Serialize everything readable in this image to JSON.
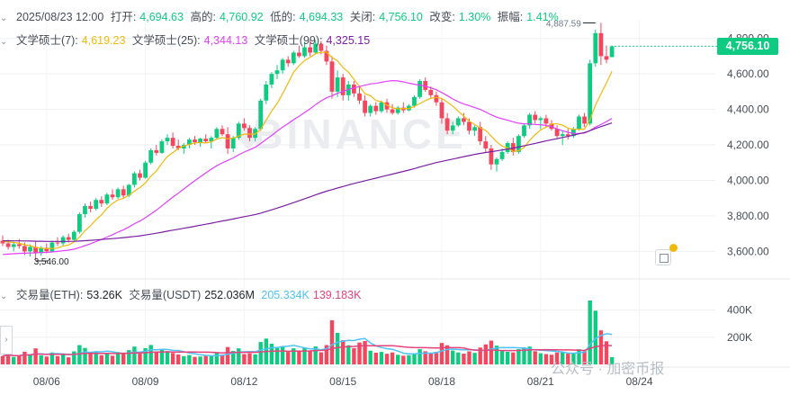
{
  "header": {
    "datetime": "2025/08/23 12:00",
    "open_label": "打开:",
    "open": "4,694.63",
    "high_label": "高的:",
    "high": "4,760.92",
    "low_label": "低的:",
    "low": "4,694.33",
    "close_label": "关闭:",
    "close": "4,756.10",
    "change_label": "改变:",
    "change": "1.30%",
    "amp_label": "振幅:",
    "amp": "1.41%"
  },
  "ma": {
    "ma7_label": "文学硕士(7):",
    "ma7": "4,619.23",
    "ma25_label": "文学硕士(25):",
    "ma25": "4,344.13",
    "ma99_label": "文学硕士(99):",
    "ma99": "4,325.15"
  },
  "volume_header": {
    "label": "交易量(ETH):",
    "eth": "53.26K",
    "usdt_label": "交易量(USDT)",
    "usdt": "252.036M",
    "ma1": "205.334K",
    "ma2": "139.183K"
  },
  "current_price": "4,756.10",
  "watermark": "BINANCE",
  "footer_watermark": "公众号 · 加密币报",
  "colors": {
    "up": "#0ecb81",
    "down": "#f6465d",
    "ma7": "#f0b90b",
    "ma25": "#e040fb",
    "ma99": "#7b1fa2",
    "vol_ma1": "#4fc3f7",
    "vol_ma2": "#e6427a"
  },
  "chart_data": {
    "type": "candlestick",
    "interval_hours": 4,
    "y_ticks": [
      3600,
      3800,
      4000,
      4200,
      4400,
      4600,
      4800
    ],
    "y_tick_labels": [
      "3,600.00",
      "3,800.00",
      "4,000.00",
      "4,200.00",
      "4,400.00",
      "4,600.00",
      "4,800.00"
    ],
    "ylim": [
      3470,
      4905
    ],
    "x_labels": [
      {
        "label": "08/06",
        "candle": 8
      },
      {
        "label": "08/09",
        "candle": 26
      },
      {
        "label": "08/12",
        "candle": 44
      },
      {
        "label": "08/15",
        "candle": 62
      },
      {
        "label": "08/18",
        "candle": 80
      },
      {
        "label": "08/21",
        "candle": 98
      },
      {
        "label": "08/24",
        "candle": 116
      }
    ],
    "annotations": [
      {
        "text": "3,546.00",
        "candle": 6,
        "value": 3546
      },
      {
        "text": "4,887.59",
        "candle": 108,
        "value": 4887.59
      }
    ],
    "volume_ticks": [
      200000,
      400000
    ],
    "volume_tick_labels": [
      "200K",
      "400K"
    ],
    "volume_max": 470000,
    "candles": [
      [
        3660,
        3690,
        3630,
        3645,
        62000
      ],
      [
        3645,
        3665,
        3610,
        3625,
        78000
      ],
      [
        3625,
        3655,
        3600,
        3640,
        55000
      ],
      [
        3640,
        3670,
        3615,
        3630,
        61000
      ],
      [
        3630,
        3650,
        3580,
        3600,
        93000
      ],
      [
        3600,
        3640,
        3570,
        3625,
        72000
      ],
      [
        3625,
        3655,
        3546,
        3590,
        118000
      ],
      [
        3590,
        3630,
        3575,
        3620,
        66000
      ],
      [
        3620,
        3645,
        3590,
        3600,
        58000
      ],
      [
        3600,
        3660,
        3595,
        3650,
        88000
      ],
      [
        3650,
        3680,
        3630,
        3645,
        61000
      ],
      [
        3645,
        3690,
        3630,
        3680,
        74000
      ],
      [
        3680,
        3700,
        3650,
        3665,
        52000
      ],
      [
        3665,
        3720,
        3660,
        3710,
        96000
      ],
      [
        3710,
        3820,
        3700,
        3810,
        142000
      ],
      [
        3810,
        3870,
        3790,
        3855,
        121000
      ],
      [
        3855,
        3880,
        3820,
        3840,
        77000
      ],
      [
        3840,
        3900,
        3830,
        3890,
        93000
      ],
      [
        3890,
        3910,
        3850,
        3870,
        68000
      ],
      [
        3870,
        3930,
        3860,
        3920,
        82000
      ],
      [
        3920,
        3950,
        3890,
        3905,
        64000
      ],
      [
        3905,
        3960,
        3895,
        3950,
        91000
      ],
      [
        3950,
        3970,
        3900,
        3915,
        87000
      ],
      [
        3915,
        3980,
        3905,
        3975,
        105000
      ],
      [
        3975,
        4050,
        3960,
        4040,
        131000
      ],
      [
        4040,
        4060,
        4000,
        4015,
        79000
      ],
      [
        4015,
        4110,
        4010,
        4100,
        120000
      ],
      [
        4100,
        4180,
        4090,
        4170,
        143000
      ],
      [
        4170,
        4200,
        4140,
        4155,
        88000
      ],
      [
        4155,
        4230,
        4150,
        4220,
        110000
      ],
      [
        4220,
        4260,
        4200,
        4240,
        98000
      ],
      [
        4240,
        4270,
        4180,
        4195,
        84000
      ],
      [
        4195,
        4230,
        4170,
        4180,
        73000
      ],
      [
        4180,
        4210,
        4150,
        4200,
        61000
      ],
      [
        4200,
        4240,
        4180,
        4230,
        69000
      ],
      [
        4230,
        4250,
        4200,
        4215,
        55000
      ],
      [
        4215,
        4240,
        4190,
        4235,
        58000
      ],
      [
        4235,
        4260,
        4210,
        4220,
        62000
      ],
      [
        4220,
        4250,
        4180,
        4240,
        66000
      ],
      [
        4240,
        4300,
        4230,
        4290,
        88000
      ],
      [
        4290,
        4310,
        4250,
        4260,
        72000
      ],
      [
        4260,
        4300,
        4150,
        4180,
        128000
      ],
      [
        4180,
        4250,
        4160,
        4240,
        99000
      ],
      [
        4240,
        4330,
        4230,
        4320,
        118000
      ],
      [
        4320,
        4350,
        4280,
        4295,
        76000
      ],
      [
        4295,
        4310,
        4220,
        4240,
        81000
      ],
      [
        4240,
        4300,
        4220,
        4290,
        74000
      ],
      [
        4290,
        4460,
        4280,
        4450,
        165000
      ],
      [
        4450,
        4560,
        4430,
        4540,
        190000
      ],
      [
        4540,
        4610,
        4520,
        4600,
        152000
      ],
      [
        4600,
        4650,
        4570,
        4620,
        128000
      ],
      [
        4620,
        4690,
        4600,
        4680,
        134000
      ],
      [
        4680,
        4700,
        4640,
        4660,
        92000
      ],
      [
        4660,
        4730,
        4650,
        4720,
        118000
      ],
      [
        4720,
        4760,
        4690,
        4700,
        103000
      ],
      [
        4700,
        4780,
        4690,
        4750,
        125000
      ],
      [
        4750,
        4790,
        4700,
        4720,
        98000
      ],
      [
        4720,
        4790,
        4710,
        4770,
        132000
      ],
      [
        4770,
        4785,
        4710,
        4730,
        89000
      ],
      [
        4730,
        4760,
        4650,
        4670,
        142000
      ],
      [
        4670,
        4700,
        4460,
        4500,
        325000
      ],
      [
        4500,
        4620,
        4470,
        4580,
        232000
      ],
      [
        4580,
        4600,
        4450,
        4480,
        178000
      ],
      [
        4480,
        4560,
        4450,
        4540,
        141000
      ],
      [
        4540,
        4560,
        4470,
        4490,
        120000
      ],
      [
        4490,
        4530,
        4430,
        4450,
        161000
      ],
      [
        4450,
        4480,
        4360,
        4380,
        172000
      ],
      [
        4380,
        4430,
        4360,
        4420,
        101000
      ],
      [
        4420,
        4440,
        4370,
        4390,
        86000
      ],
      [
        4390,
        4450,
        4380,
        4440,
        92000
      ],
      [
        4440,
        4460,
        4380,
        4400,
        78000
      ],
      [
        4400,
        4430,
        4370,
        4380,
        88000
      ],
      [
        4380,
        4420,
        4370,
        4410,
        71000
      ],
      [
        4410,
        4440,
        4380,
        4395,
        64000
      ],
      [
        4395,
        4430,
        4390,
        4420,
        68000
      ],
      [
        4420,
        4480,
        4410,
        4470,
        83000
      ],
      [
        4470,
        4570,
        4460,
        4560,
        112000
      ],
      [
        4560,
        4580,
        4500,
        4510,
        97000
      ],
      [
        4510,
        4530,
        4460,
        4480,
        86000
      ],
      [
        4480,
        4500,
        4420,
        4440,
        92000
      ],
      [
        4440,
        4460,
        4320,
        4350,
        158000
      ],
      [
        4350,
        4380,
        4260,
        4280,
        141000
      ],
      [
        4280,
        4330,
        4260,
        4310,
        102000
      ],
      [
        4310,
        4360,
        4300,
        4350,
        88000
      ],
      [
        4350,
        4380,
        4310,
        4330,
        79000
      ],
      [
        4330,
        4350,
        4260,
        4280,
        96000
      ],
      [
        4280,
        4310,
        4250,
        4300,
        85000
      ],
      [
        4300,
        4330,
        4200,
        4220,
        124000
      ],
      [
        4220,
        4250,
        4160,
        4180,
        147000
      ],
      [
        4180,
        4200,
        4060,
        4090,
        175000
      ],
      [
        4090,
        4130,
        4050,
        4120,
        138000
      ],
      [
        4120,
        4180,
        4110,
        4160,
        101000
      ],
      [
        4160,
        4220,
        4150,
        4210,
        93000
      ],
      [
        4210,
        4240,
        4140,
        4160,
        88000
      ],
      [
        4160,
        4260,
        4150,
        4250,
        112000
      ],
      [
        4250,
        4320,
        4240,
        4310,
        126000
      ],
      [
        4310,
        4380,
        4290,
        4370,
        131000
      ],
      [
        4370,
        4390,
        4320,
        4340,
        97000
      ],
      [
        4340,
        4360,
        4290,
        4350,
        82000
      ],
      [
        4350,
        4370,
        4300,
        4320,
        76000
      ],
      [
        4320,
        4340,
        4280,
        4290,
        71000
      ],
      [
        4290,
        4310,
        4240,
        4250,
        88000
      ],
      [
        4250,
        4280,
        4200,
        4260,
        93000
      ],
      [
        4260,
        4290,
        4230,
        4250,
        79000
      ],
      [
        4250,
        4300,
        4240,
        4290,
        86000
      ],
      [
        4290,
        4370,
        4280,
        4360,
        112000
      ],
      [
        4360,
        4380,
        4300,
        4320,
        97000
      ],
      [
        4320,
        4680,
        4310,
        4660,
        470000
      ],
      [
        4660,
        4850,
        4640,
        4830,
        395000
      ],
      [
        4830,
        4887.59,
        4650,
        4700,
        250000
      ],
      [
        4700,
        4760,
        4660,
        4680,
        170000
      ],
      [
        4694.63,
        4760.92,
        4694.33,
        4756.1,
        53260
      ]
    ]
  }
}
